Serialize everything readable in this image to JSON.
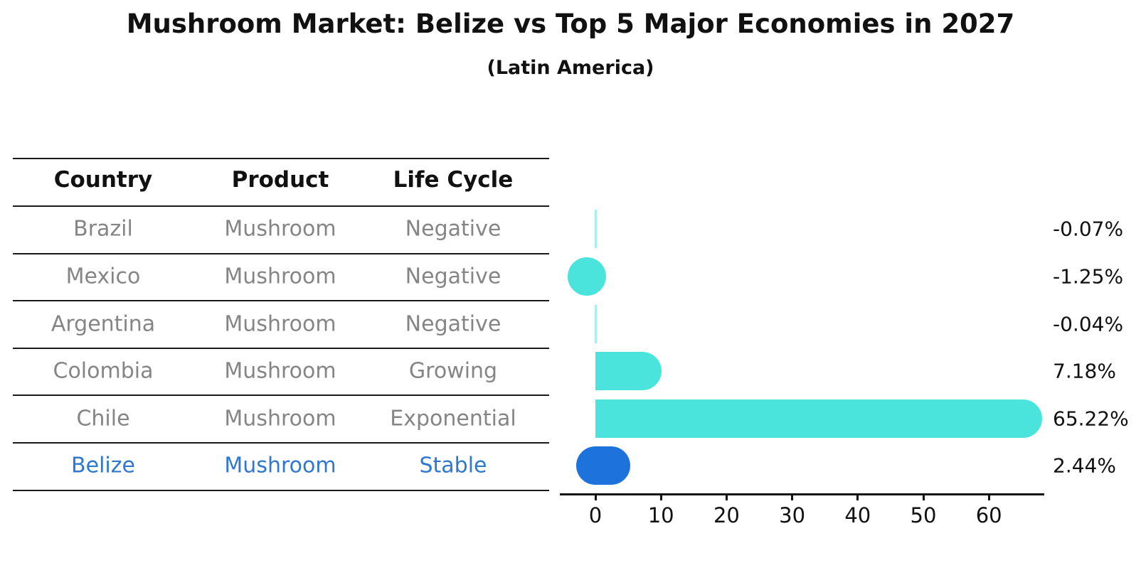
{
  "title": "Mushroom Market: Belize vs Top 5 Major Economies in 2027",
  "subtitle": "(Latin America)",
  "table": {
    "headers": [
      "Country",
      "Product",
      "Life Cycle"
    ],
    "rows": [
      {
        "country": "Brazil",
        "product": "Mushroom",
        "life_cycle": "Negative"
      },
      {
        "country": "Mexico",
        "product": "Mushroom",
        "life_cycle": "Negative"
      },
      {
        "country": "Argentina",
        "product": "Mushroom",
        "life_cycle": "Negative"
      },
      {
        "country": "Colombia",
        "product": "Mushroom",
        "life_cycle": "Growing"
      },
      {
        "country": "Chile",
        "product": "Mushroom",
        "life_cycle": "Exponential"
      },
      {
        "country": "Belize",
        "product": "Mushroom",
        "life_cycle": "Stable"
      }
    ],
    "highlight_row": "Belize"
  },
  "chart_data": {
    "type": "bar",
    "orientation": "horizontal",
    "title": "Mushroom Market: Belize vs Top 5 Major Economies in 2027",
    "subtitle": "(Latin America)",
    "categories": [
      "Brazil",
      "Mexico",
      "Argentina",
      "Colombia",
      "Chile",
      "Belize"
    ],
    "values": [
      -0.07,
      -1.25,
      -0.04,
      7.18,
      65.22,
      2.44
    ],
    "value_labels": [
      "-0.07%",
      "-1.25%",
      "-0.04%",
      "7.18%",
      "65.22%",
      "2.44%"
    ],
    "x_ticks": [
      0,
      10,
      20,
      30,
      40,
      50,
      60
    ],
    "xlim": [
      -5.4,
      68.5
    ],
    "grid": false,
    "legend": false,
    "bar_color": "#4be4dc",
    "highlight_bar_color": "#1e72dc",
    "highlight_category": "Belize"
  },
  "colors": {
    "bar_cyan": "#4be4dc",
    "belize_blue": "#1e72dc",
    "highlight_text_blue": "#2e78d2",
    "table_text_gray": "#858585",
    "ink_black": "#111111",
    "background": "#ffffff"
  }
}
